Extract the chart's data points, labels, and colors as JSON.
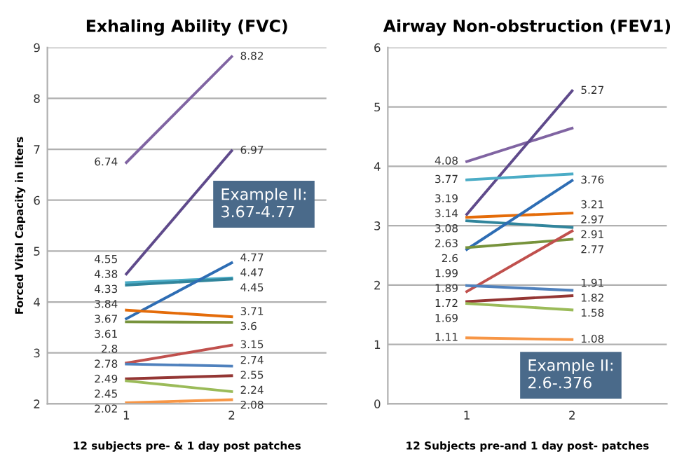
{
  "chart_data": [
    {
      "type": "line",
      "title": "Exhaling Ability (FVC)",
      "xlabel": "12 subjects pre- & 1 day post patches",
      "ylabel": "Forced Vital Capacity in liters",
      "categories": [
        "1",
        "2"
      ],
      "ylim": [
        2,
        9
      ],
      "yticks": [
        2,
        3,
        4,
        5,
        6,
        7,
        8,
        9
      ],
      "grid": "y",
      "marker": "none",
      "annotations": [
        "Example II:\n3.67-4.77"
      ],
      "series": [
        {
          "color": "#8064a2",
          "values": [
            6.74,
            8.82
          ],
          "value_labels": [
            "6.74",
            "8.82"
          ]
        },
        {
          "color": "#5f4a8b",
          "values": [
            4.55,
            6.97
          ],
          "value_labels": [
            "4.55",
            "6.97"
          ]
        },
        {
          "color": "#4bacc6",
          "values": [
            4.38,
            4.47
          ],
          "value_labels": [
            "4.38",
            "4.47"
          ]
        },
        {
          "color": "#31859c",
          "values": [
            4.33,
            4.45
          ],
          "value_labels": [
            "4.33",
            "4.45"
          ]
        },
        {
          "color": "#2e6db4",
          "values": [
            3.67,
            4.77
          ],
          "value_labels": [
            "3.67",
            "4.77"
          ]
        },
        {
          "color": "#e46c0a",
          "values": [
            3.84,
            3.71
          ],
          "value_labels": [
            "3.84",
            "3.71"
          ]
        },
        {
          "color": "#77933c",
          "values": [
            3.61,
            3.6
          ],
          "value_labels": [
            "3.61",
            "3.6"
          ]
        },
        {
          "color": "#c0504d",
          "values": [
            2.8,
            3.15
          ],
          "value_labels": [
            "2.8",
            "3.15"
          ]
        },
        {
          "color": "#4f81bd",
          "values": [
            2.78,
            2.74
          ],
          "value_labels": [
            "2.78",
            "2.74"
          ]
        },
        {
          "color": "#943634",
          "values": [
            2.49,
            2.55
          ],
          "value_labels": [
            "2.49",
            "2.55"
          ]
        },
        {
          "color": "#9bbb59",
          "values": [
            2.45,
            2.24
          ],
          "value_labels": [
            "2.45",
            "2.24"
          ]
        },
        {
          "color": "#f79646",
          "values": [
            2.02,
            2.08
          ],
          "value_labels": [
            "2.02",
            "2.08"
          ]
        }
      ]
    },
    {
      "type": "line",
      "title": "Airway Non-obstruction (FEV1)",
      "xlabel": "12 Subjects pre-and 1 day post- patches",
      "categories": [
        "1",
        "2"
      ],
      "ylim": [
        0,
        6
      ],
      "yticks": [
        0,
        1,
        2,
        3,
        4,
        5,
        6
      ],
      "grid": "y",
      "marker": "none",
      "annotations": [
        "Example II:\n2.6-.376"
      ],
      "series": [
        {
          "color": "#8064a2",
          "values": [
            4.08,
            4.64
          ],
          "value_labels": [
            "4.08",
            null
          ]
        },
        {
          "color": "#5f4a8b",
          "values": [
            3.19,
            5.27
          ],
          "value_labels": [
            "3.19",
            "5.27"
          ]
        },
        {
          "color": "#4bacc6",
          "values": [
            3.77,
            3.87
          ],
          "value_labels": [
            "3.77",
            null
          ]
        },
        {
          "color": "#e46c0a",
          "values": [
            3.14,
            3.21
          ],
          "value_labels": [
            "3.14",
            "3.21"
          ]
        },
        {
          "color": "#31859c",
          "values": [
            3.08,
            2.97
          ],
          "value_labels": [
            "3.08",
            "2.97"
          ]
        },
        {
          "color": "#2e6db4",
          "values": [
            2.6,
            3.76
          ],
          "value_labels": [
            "2.6",
            "3.76"
          ]
        },
        {
          "color": "#77933c",
          "values": [
            2.63,
            2.77
          ],
          "value_labels": [
            "2.63",
            "2.77"
          ]
        },
        {
          "color": "#c0504d",
          "values": [
            1.89,
            2.91
          ],
          "value_labels": [
            "1.89",
            "2.91"
          ]
        },
        {
          "color": "#4f81bd",
          "values": [
            1.99,
            1.91
          ],
          "value_labels": [
            "1.99",
            "1.91"
          ]
        },
        {
          "color": "#943634",
          "values": [
            1.72,
            1.82
          ],
          "value_labels": [
            "1.72",
            "1.82"
          ]
        },
        {
          "color": "#9bbb59",
          "values": [
            1.69,
            1.58
          ],
          "value_labels": [
            "1.69",
            "1.58"
          ]
        },
        {
          "color": "#f79646",
          "values": [
            1.11,
            1.08
          ],
          "value_labels": [
            "1.11",
            "1.08"
          ]
        }
      ]
    }
  ]
}
